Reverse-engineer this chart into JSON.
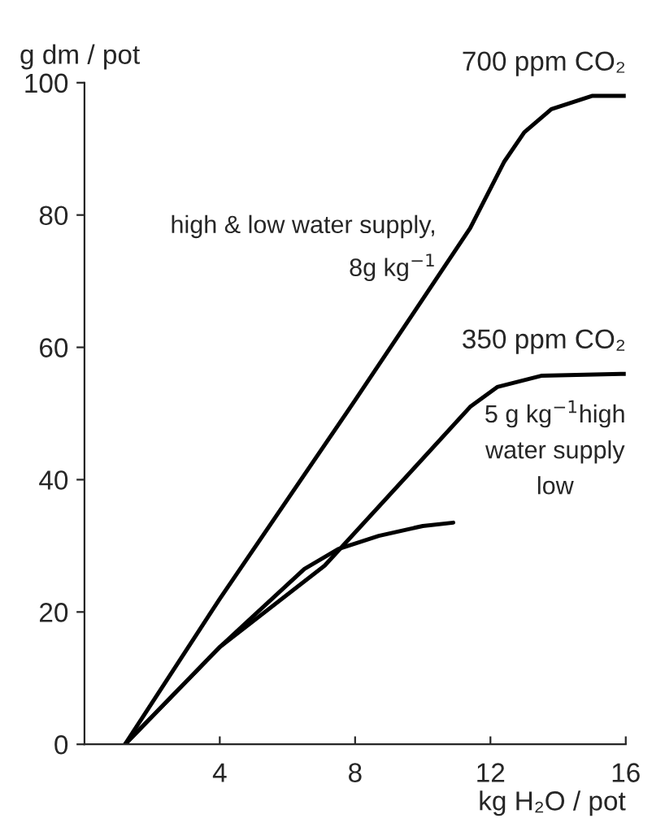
{
  "chart_data": {
    "type": "line",
    "xlabel": "kg H₂O / pot",
    "ylabel": "g dm / pot",
    "xlim": [
      0,
      16
    ],
    "ylim": [
      0,
      100
    ],
    "xticks": [
      4,
      8,
      12,
      16
    ],
    "yticks": [
      0,
      20,
      40,
      60,
      80,
      100
    ],
    "grid": false,
    "legend": false,
    "marker": "none",
    "line_style": "solid",
    "series": [
      {
        "name": "700 ppm CO₂",
        "color": "#000000",
        "x": [
          1.2,
          4,
          8,
          11.4,
          12.4,
          13,
          13.8,
          15,
          16
        ],
        "values": [
          0,
          22,
          52,
          78,
          88,
          92.5,
          96,
          98,
          98
        ]
      },
      {
        "name": "350 ppm CO₂",
        "color": "#000000",
        "x": [
          1.2,
          4,
          7.1,
          9.7,
          11.4,
          12.2,
          13.5,
          16
        ],
        "values": [
          0,
          14.7,
          27,
          41.5,
          51,
          54,
          55.7,
          56
        ]
      },
      {
        "color": "#000000",
        "x": [
          1.2,
          4,
          6.5,
          7.5,
          8.7,
          10,
          10.9
        ],
        "values": [
          0,
          14.7,
          26.5,
          29.5,
          31.5,
          33,
          33.5
        ]
      }
    ],
    "annotations": [
      "high & low water supply,\n8g kg$^{−1}$",
      "5 g kg$^{−1}$high\nwater supply\nlow"
    ]
  }
}
